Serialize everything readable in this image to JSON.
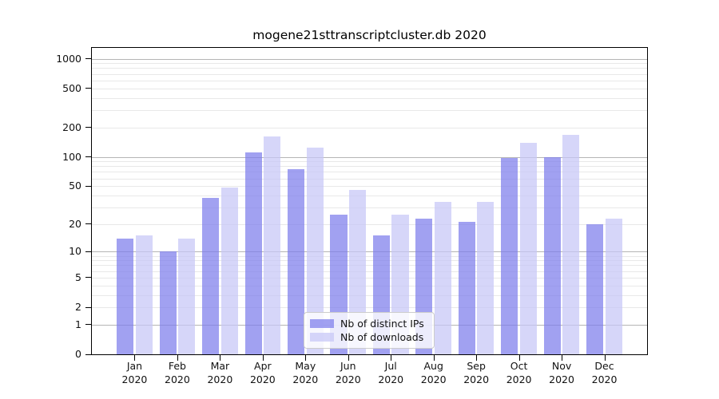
{
  "chart_data": {
    "type": "bar",
    "title": "mogene21sttranscriptcluster.db 2020",
    "categories": [
      "Jan 2020",
      "Feb 2020",
      "Mar 2020",
      "Apr 2020",
      "May 2020",
      "Jun 2020",
      "Jul 2020",
      "Aug 2020",
      "Sep 2020",
      "Oct 2020",
      "Nov 2020",
      "Dec 2020"
    ],
    "series": [
      {
        "name": "Nb of distinct IPs",
        "color": "#7d7dec",
        "values": [
          14,
          10,
          38,
          110,
          75,
          25,
          15,
          23,
          21,
          97,
          100,
          20
        ]
      },
      {
        "name": "Nb of downloads",
        "color": "#c6c6f6",
        "values": [
          15,
          14,
          48,
          160,
          123,
          46,
          25,
          34,
          34,
          140,
          168,
          23
        ]
      }
    ],
    "yticks": [
      0,
      1,
      2,
      5,
      10,
      20,
      50,
      100,
      200,
      500,
      1000
    ],
    "yscale": "log10(1+y)",
    "ylim": [
      0,
      1290
    ],
    "xlabel": "",
    "ylabel": "",
    "grid": true,
    "legend_position": "inside-bottom-center",
    "colors": {
      "grid_major": "#b5b5b5",
      "grid_minor": "#e8e8e8",
      "axis": "#000000",
      "background": "#ffffff"
    }
  }
}
